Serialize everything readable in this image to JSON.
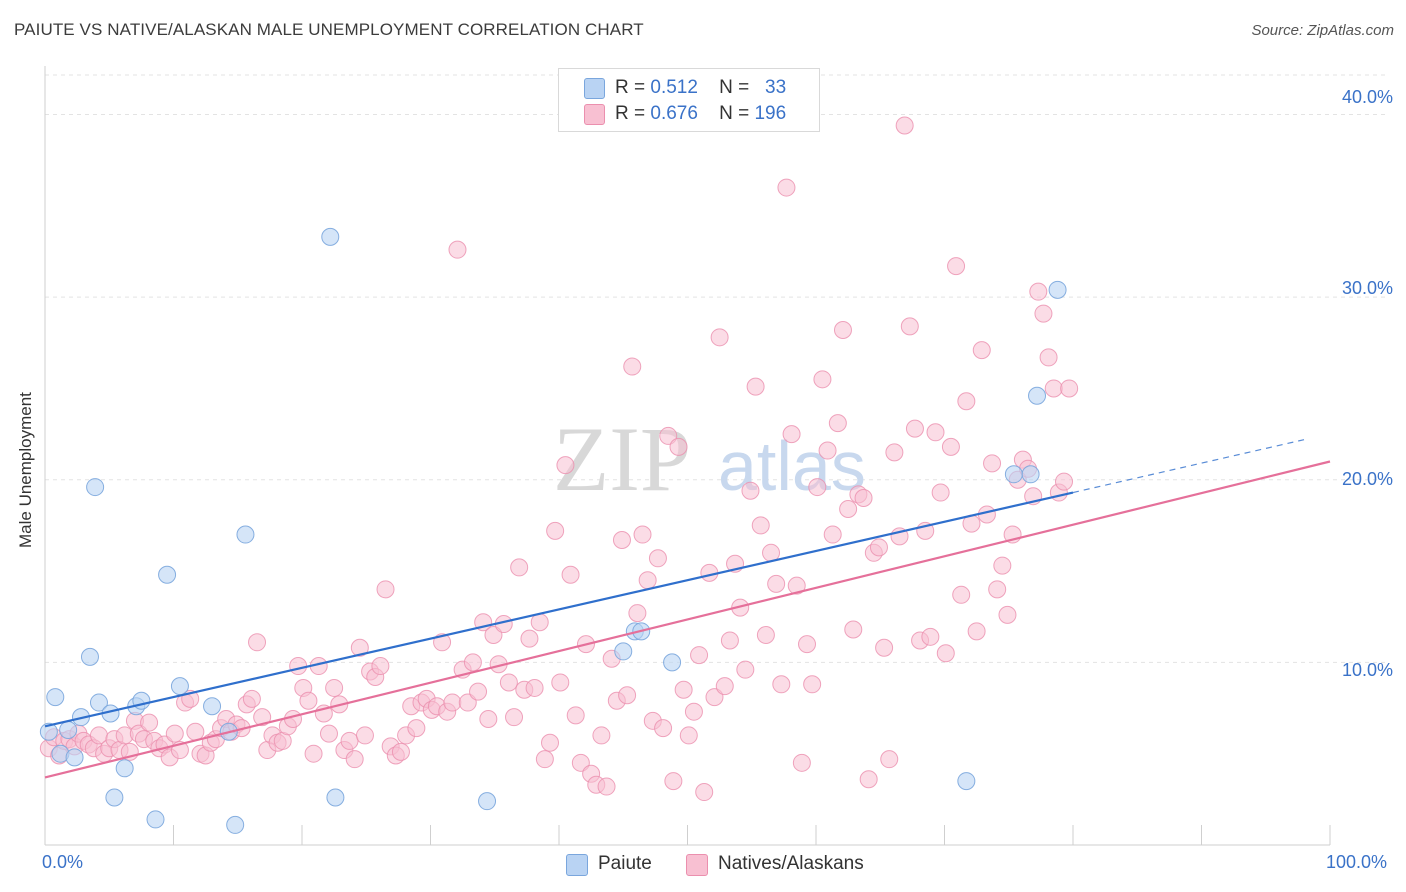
{
  "header": {
    "title": "PAIUTE VS NATIVE/ALASKAN MALE UNEMPLOYMENT CORRELATION CHART",
    "source": "Source: ZipAtlas.com"
  },
  "watermark": {
    "zip": "ZIP",
    "atlas": "atlas"
  },
  "colors": {
    "paiute_fill": "#b9d3f3",
    "paiute_stroke": "#7aa6dd",
    "paiute_line": "#2f6fcc",
    "native_fill": "#f8c0d2",
    "native_stroke": "#eb8fae",
    "native_line": "#e5709a",
    "axis_text": "#3a72c8"
  },
  "legend": {
    "rows": [
      {
        "r_label": "R =",
        "r_value": "0.512",
        "n_label": "N =",
        "n_value": "33"
      },
      {
        "r_label": "R =",
        "r_value": "0.676",
        "n_label": "N =",
        "n_value": "196"
      }
    ]
  },
  "bottom_legend": {
    "paiute": "Paiute",
    "native": "Natives/Alaskans"
  },
  "chart_data": {
    "type": "scatter",
    "title": "PAIUTE VS NATIVE/ALASKAN MALE UNEMPLOYMENT CORRELATION CHART",
    "xlabel": "",
    "ylabel": "Male Unemployment",
    "xlim": [
      0,
      100
    ],
    "ylim": [
      0,
      42
    ],
    "x_ticks": [
      "0.0%",
      "100.0%"
    ],
    "y_ticks": [
      "10.0%",
      "20.0%",
      "30.0%",
      "40.0%"
    ],
    "y_tick_values": [
      10,
      20,
      30,
      40
    ],
    "grid": true,
    "legend_position": "top-center",
    "series": [
      {
        "name": "Paiute",
        "R": 0.512,
        "N": 33,
        "trend": {
          "x0": 0,
          "y0": 6.5,
          "x1": 80,
          "y1": 19.3,
          "dash_to_x": 98,
          "dash_to_y": 22.2
        },
        "points": [
          [
            0.3,
            6.2
          ],
          [
            0.8,
            8.1
          ],
          [
            1.2,
            5.0
          ],
          [
            1.8,
            6.3
          ],
          [
            2.3,
            4.8
          ],
          [
            2.8,
            7.0
          ],
          [
            3.5,
            10.3
          ],
          [
            3.9,
            19.6
          ],
          [
            4.2,
            7.8
          ],
          [
            5.1,
            7.2
          ],
          [
            5.4,
            2.6
          ],
          [
            6.2,
            4.2
          ],
          [
            7.1,
            7.6
          ],
          [
            7.5,
            7.9
          ],
          [
            8.6,
            1.4
          ],
          [
            9.5,
            14.8
          ],
          [
            10.5,
            8.7
          ],
          [
            13.0,
            7.6
          ],
          [
            14.3,
            6.2
          ],
          [
            14.8,
            1.1
          ],
          [
            15.6,
            17.0
          ],
          [
            22.2,
            33.3
          ],
          [
            22.6,
            2.6
          ],
          [
            34.4,
            2.4
          ],
          [
            45.9,
            11.7
          ],
          [
            45.0,
            10.6
          ],
          [
            46.4,
            11.7
          ],
          [
            48.8,
            10.0
          ],
          [
            71.7,
            3.5
          ],
          [
            75.4,
            20.3
          ],
          [
            76.7,
            20.3
          ],
          [
            77.2,
            24.6
          ],
          [
            78.8,
            30.4
          ]
        ]
      },
      {
        "name": "Natives/Alaskans",
        "R": 0.676,
        "N": 196,
        "trend": {
          "x0": 0,
          "y0": 3.7,
          "x1": 100,
          "y1": 21.0
        },
        "points": [
          [
            0.3,
            5.3
          ],
          [
            0.7,
            5.9
          ],
          [
            1.1,
            4.9
          ],
          [
            1.5,
            5.7
          ],
          [
            1.9,
            5.8
          ],
          [
            2.3,
            5.4
          ],
          [
            2.6,
            6.1
          ],
          [
            3.0,
            5.7
          ],
          [
            3.4,
            5.5
          ],
          [
            3.8,
            5.3
          ],
          [
            4.2,
            6.0
          ],
          [
            4.6,
            5.0
          ],
          [
            5.0,
            5.3
          ],
          [
            5.4,
            5.8
          ],
          [
            5.8,
            5.2
          ],
          [
            6.2,
            6.0
          ],
          [
            6.6,
            5.1
          ],
          [
            7.0,
            6.8
          ],
          [
            7.3,
            6.1
          ],
          [
            7.7,
            5.8
          ],
          [
            8.1,
            6.7
          ],
          [
            8.5,
            5.7
          ],
          [
            8.9,
            5.3
          ],
          [
            9.3,
            5.5
          ],
          [
            9.7,
            4.8
          ],
          [
            10.1,
            6.1
          ],
          [
            10.5,
            5.2
          ],
          [
            10.9,
            7.8
          ],
          [
            11.3,
            8.0
          ],
          [
            11.7,
            6.2
          ],
          [
            12.1,
            5.0
          ],
          [
            12.5,
            4.9
          ],
          [
            12.9,
            5.6
          ],
          [
            13.3,
            5.8
          ],
          [
            13.7,
            6.4
          ],
          [
            14.1,
            6.9
          ],
          [
            14.5,
            6.2
          ],
          [
            14.9,
            6.6
          ],
          [
            15.3,
            6.4
          ],
          [
            15.7,
            7.7
          ],
          [
            16.1,
            8.0
          ],
          [
            16.5,
            11.1
          ],
          [
            16.9,
            7.0
          ],
          [
            17.3,
            5.2
          ],
          [
            17.7,
            6.0
          ],
          [
            18.1,
            5.6
          ],
          [
            18.5,
            5.7
          ],
          [
            18.9,
            6.5
          ],
          [
            19.3,
            6.9
          ],
          [
            19.7,
            9.8
          ],
          [
            20.1,
            8.6
          ],
          [
            20.5,
            7.9
          ],
          [
            20.9,
            5.0
          ],
          [
            21.3,
            9.8
          ],
          [
            21.7,
            7.2
          ],
          [
            22.1,
            6.1
          ],
          [
            22.5,
            8.6
          ],
          [
            22.9,
            7.7
          ],
          [
            23.3,
            5.2
          ],
          [
            23.7,
            5.7
          ],
          [
            24.1,
            4.7
          ],
          [
            24.5,
            10.8
          ],
          [
            24.9,
            6.0
          ],
          [
            25.3,
            9.5
          ],
          [
            25.7,
            9.2
          ],
          [
            26.1,
            9.8
          ],
          [
            26.5,
            14.0
          ],
          [
            26.9,
            5.4
          ],
          [
            27.3,
            4.9
          ],
          [
            27.7,
            5.1
          ],
          [
            28.1,
            6.0
          ],
          [
            28.5,
            7.6
          ],
          [
            28.9,
            6.4
          ],
          [
            29.3,
            7.8
          ],
          [
            29.7,
            8.0
          ],
          [
            30.1,
            7.4
          ],
          [
            30.5,
            7.6
          ],
          [
            30.9,
            11.1
          ],
          [
            31.3,
            7.3
          ],
          [
            31.7,
            7.8
          ],
          [
            32.1,
            32.6
          ],
          [
            32.5,
            9.6
          ],
          [
            32.9,
            7.8
          ],
          [
            33.3,
            10.0
          ],
          [
            33.7,
            8.4
          ],
          [
            34.1,
            12.2
          ],
          [
            34.5,
            6.9
          ],
          [
            34.9,
            11.5
          ],
          [
            35.3,
            9.9
          ],
          [
            35.7,
            12.1
          ],
          [
            36.1,
            8.9
          ],
          [
            36.5,
            7.0
          ],
          [
            36.9,
            15.2
          ],
          [
            37.3,
            8.5
          ],
          [
            37.7,
            11.3
          ],
          [
            38.1,
            8.6
          ],
          [
            38.5,
            12.2
          ],
          [
            38.9,
            4.7
          ],
          [
            39.3,
            5.6
          ],
          [
            39.7,
            17.2
          ],
          [
            40.1,
            8.9
          ],
          [
            40.5,
            20.8
          ],
          [
            40.9,
            14.8
          ],
          [
            41.3,
            7.1
          ],
          [
            41.7,
            4.5
          ],
          [
            42.1,
            11.0
          ],
          [
            42.5,
            3.9
          ],
          [
            42.9,
            3.3
          ],
          [
            43.3,
            6.0
          ],
          [
            43.7,
            3.2
          ],
          [
            44.1,
            10.2
          ],
          [
            44.5,
            7.9
          ],
          [
            44.9,
            16.7
          ],
          [
            45.3,
            8.2
          ],
          [
            45.7,
            26.2
          ],
          [
            46.1,
            12.7
          ],
          [
            46.5,
            17.0
          ],
          [
            46.9,
            14.5
          ],
          [
            47.3,
            6.8
          ],
          [
            47.7,
            15.7
          ],
          [
            48.1,
            6.4
          ],
          [
            48.5,
            22.4
          ],
          [
            48.9,
            3.5
          ],
          [
            49.3,
            21.8
          ],
          [
            49.7,
            8.5
          ],
          [
            50.1,
            6.0
          ],
          [
            50.5,
            7.3
          ],
          [
            50.9,
            10.4
          ],
          [
            51.3,
            2.9
          ],
          [
            51.7,
            14.9
          ],
          [
            52.1,
            8.1
          ],
          [
            52.5,
            27.8
          ],
          [
            52.9,
            8.7
          ],
          [
            53.3,
            11.2
          ],
          [
            53.7,
            15.4
          ],
          [
            54.1,
            13.0
          ],
          [
            54.5,
            9.6
          ],
          [
            54.9,
            19.4
          ],
          [
            55.3,
            25.1
          ],
          [
            55.7,
            17.5
          ],
          [
            56.1,
            11.5
          ],
          [
            56.5,
            16.0
          ],
          [
            56.9,
            14.3
          ],
          [
            57.3,
            8.8
          ],
          [
            57.7,
            36.0
          ],
          [
            58.1,
            22.5
          ],
          [
            58.5,
            14.2
          ],
          [
            58.9,
            4.5
          ],
          [
            59.3,
            11.0
          ],
          [
            59.7,
            8.8
          ],
          [
            60.1,
            19.6
          ],
          [
            60.5,
            25.5
          ],
          [
            60.9,
            21.6
          ],
          [
            61.3,
            17.0
          ],
          [
            61.7,
            23.1
          ],
          [
            62.1,
            28.2
          ],
          [
            62.5,
            18.4
          ],
          [
            62.9,
            11.8
          ],
          [
            63.3,
            19.2
          ],
          [
            63.7,
            19.0
          ],
          [
            64.1,
            3.6
          ],
          [
            64.5,
            16.0
          ],
          [
            64.9,
            16.3
          ],
          [
            65.3,
            10.8
          ],
          [
            65.7,
            4.7
          ],
          [
            66.1,
            21.5
          ],
          [
            66.5,
            16.9
          ],
          [
            66.9,
            39.4
          ],
          [
            67.3,
            28.4
          ],
          [
            67.7,
            22.8
          ],
          [
            68.1,
            11.2
          ],
          [
            68.5,
            17.2
          ],
          [
            68.9,
            11.4
          ],
          [
            69.3,
            22.6
          ],
          [
            69.7,
            19.3
          ],
          [
            70.1,
            10.5
          ],
          [
            70.5,
            21.8
          ],
          [
            70.9,
            31.7
          ],
          [
            71.3,
            13.7
          ],
          [
            71.7,
            24.3
          ],
          [
            72.1,
            17.6
          ],
          [
            72.5,
            11.7
          ],
          [
            72.9,
            27.1
          ],
          [
            73.3,
            18.1
          ],
          [
            73.7,
            20.9
          ],
          [
            74.1,
            14.0
          ],
          [
            74.5,
            15.3
          ],
          [
            74.9,
            12.6
          ],
          [
            75.3,
            17.0
          ],
          [
            75.7,
            20.0
          ],
          [
            76.1,
            21.1
          ],
          [
            76.5,
            20.6
          ],
          [
            76.9,
            19.1
          ],
          [
            77.3,
            30.3
          ],
          [
            77.7,
            29.1
          ],
          [
            78.1,
            26.7
          ],
          [
            78.5,
            25.0
          ],
          [
            78.9,
            19.3
          ],
          [
            79.3,
            19.9
          ],
          [
            79.7,
            25.0
          ]
        ]
      }
    ]
  }
}
